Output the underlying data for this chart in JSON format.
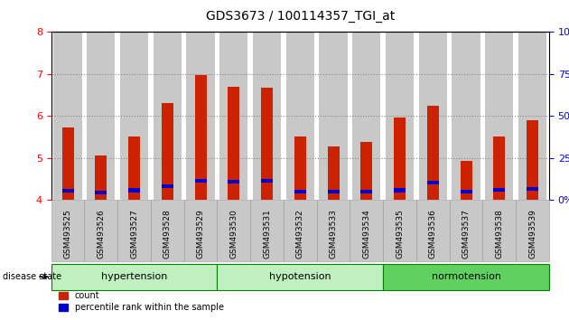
{
  "title": "GDS3673 / 100114357_TGI_at",
  "samples": [
    "GSM493525",
    "GSM493526",
    "GSM493527",
    "GSM493528",
    "GSM493529",
    "GSM493530",
    "GSM493531",
    "GSM493532",
    "GSM493533",
    "GSM493534",
    "GSM493535",
    "GSM493536",
    "GSM493537",
    "GSM493538",
    "GSM493539"
  ],
  "count_values": [
    5.73,
    5.05,
    5.52,
    6.3,
    6.97,
    6.7,
    6.67,
    5.52,
    5.27,
    5.38,
    5.97,
    6.24,
    4.94,
    5.52,
    5.9
  ],
  "percentile_values": [
    4.22,
    4.18,
    4.23,
    4.33,
    4.46,
    4.44,
    4.45,
    4.2,
    4.2,
    4.2,
    4.23,
    4.42,
    4.2,
    4.25,
    4.26
  ],
  "ylim": [
    4.0,
    8.0
  ],
  "yticks_left": [
    4,
    5,
    6,
    7,
    8
  ],
  "yticks_right": [
    0,
    25,
    50,
    75,
    100
  ],
  "bar_width": 0.35,
  "base": 4.0,
  "red_color": "#cc2200",
  "blue_color": "#0000cc",
  "bar_bg_color": "#c8c8c8",
  "group_defs": [
    {
      "start": 0,
      "end": 5,
      "label": "hypertension",
      "color": "#c0f0c0"
    },
    {
      "start": 5,
      "end": 10,
      "label": "hypotension",
      "color": "#c0f0c0"
    },
    {
      "start": 10,
      "end": 15,
      "label": "normotension",
      "color": "#60d060"
    }
  ],
  "group_border_color": "#008000",
  "dotted_line_color": "#888888",
  "title_fontsize": 10,
  "tick_label_fontsize": 6.5,
  "group_label_fontsize": 8,
  "legend_fontsize": 7
}
